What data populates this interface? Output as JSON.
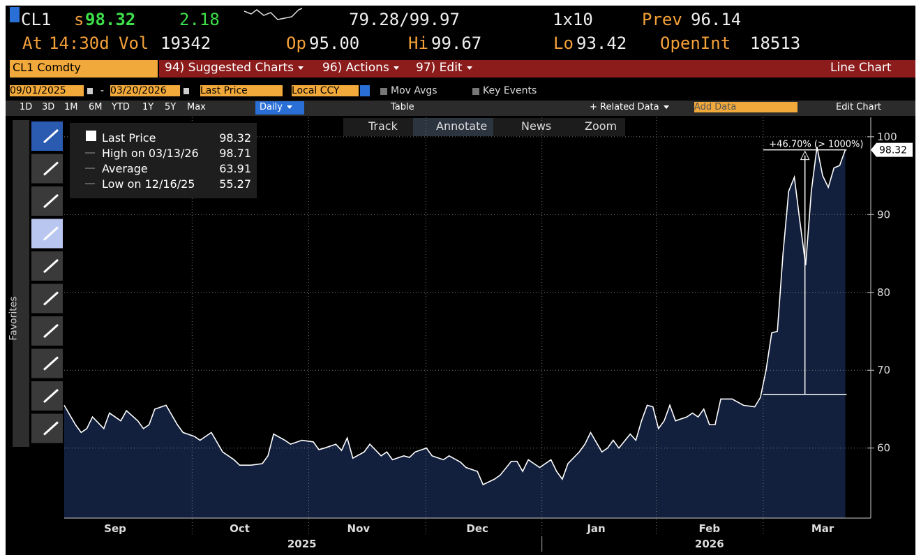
{
  "header": {
    "ticker": "CL1",
    "price_flag": "s",
    "price": "98.32",
    "change": "2.18",
    "range": "79.28/99.97",
    "ratio": "1x10",
    "prev_label": "Prev",
    "prev": "96.14",
    "time_label": "At",
    "time": "14:30d",
    "vol_label": "Vol",
    "vol": "19342",
    "open_label": "Op",
    "open": "95.00",
    "high_label": "Hi",
    "high": "99.67",
    "low_label": "Lo",
    "low": "93.42",
    "oi_label": "OpenInt",
    "oi": "18513"
  },
  "menu": {
    "security": "CL1 Comdty",
    "items": [
      "94) Suggested Charts",
      "96) Actions",
      "97) Edit"
    ],
    "title": "Line Chart"
  },
  "controls": {
    "start": "09/01/2025",
    "dash": "-",
    "end": "03/20/2026",
    "field": "Last Price",
    "currency": "Local CCY",
    "options": [
      "Mov Avgs",
      "Key Events"
    ],
    "periods": [
      "1D",
      "3D",
      "1M",
      "6M",
      "YTD",
      "1Y",
      "5Y",
      "Max"
    ],
    "frequency": "Daily",
    "table": "Table",
    "related": "+ Related Data",
    "add_data": "Add Data",
    "edit": "Edit Chart"
  },
  "toolbar": [
    "Track",
    "Annotate",
    "News",
    "Zoom"
  ],
  "sidebar_label": "Favorites",
  "legend": {
    "rows": [
      {
        "label": "High on 03/13/26",
        "value": "98.71"
      },
      {
        "label": "Average",
        "value": "63.91"
      },
      {
        "label": "Low on 12/16/25",
        "value": "55.27"
      }
    ]
  },
  "chart_data": {
    "type": "line",
    "series": [
      {
        "name": "Last Price",
        "color": "#ffffff",
        "x": [
          0,
          2,
          3,
          4,
          5,
          7,
          8,
          10,
          11,
          13,
          14,
          15,
          16,
          18,
          20,
          21,
          23,
          24,
          26,
          28,
          29,
          30,
          31,
          33,
          35,
          36,
          37,
          39,
          40,
          42,
          44,
          45,
          46,
          48,
          49,
          50,
          51,
          53,
          54,
          56,
          57,
          58,
          60,
          61,
          62,
          64,
          65,
          67,
          68,
          70,
          71,
          73,
          74,
          76,
          77,
          79,
          80,
          81,
          82,
          83,
          84,
          86,
          87,
          88,
          89,
          91,
          92,
          93,
          95,
          96,
          97,
          98,
          100,
          101,
          102,
          103,
          104,
          105,
          106,
          107,
          108,
          110,
          111,
          112,
          113,
          114,
          115,
          116,
          118,
          120,
          122,
          123,
          124,
          125,
          126,
          127,
          128,
          129,
          130,
          131,
          132,
          133,
          134,
          135,
          136,
          137,
          138
        ],
        "values": [
          65.5,
          63,
          62,
          62.5,
          64,
          62.5,
          64.5,
          63.5,
          64.8,
          63.5,
          62.5,
          63,
          65,
          65.5,
          63,
          62,
          61.5,
          61,
          62,
          59.5,
          59,
          58.5,
          57.8,
          57.8,
          58,
          59,
          61.8,
          61,
          60.5,
          61,
          60.8,
          59.8,
          60,
          60.5,
          59.7,
          61.3,
          58.7,
          59.5,
          60.5,
          59,
          59.5,
          58.5,
          59,
          58.8,
          59.5,
          60,
          59,
          58.5,
          59,
          58.2,
          57.5,
          57,
          55.3,
          56,
          56.5,
          58.3,
          58.3,
          57,
          58.5,
          58,
          57.5,
          58.5,
          57,
          56,
          58,
          59.5,
          60.5,
          62,
          59.5,
          60,
          61,
          60,
          61.8,
          61,
          63.5,
          65.5,
          65.3,
          62.5,
          63.5,
          65.5,
          63.5,
          64,
          64.5,
          64,
          65,
          63,
          63,
          66.3,
          66.3,
          65.5,
          65.3,
          66.5,
          70,
          74.8,
          75,
          85,
          93,
          94.8,
          89,
          83.5,
          93,
          98.7,
          95,
          93.5,
          96,
          96.3,
          98.32
        ]
      }
    ],
    "xlim": [
      0,
      142.5
    ],
    "xticks": [
      {
        "value": 9,
        "label": "Sep"
      },
      {
        "value": 31,
        "label": "Oct"
      },
      {
        "value": 52,
        "label": "Nov"
      },
      {
        "value": 73,
        "label": "Dec"
      },
      {
        "value": 94,
        "label": "Jan"
      },
      {
        "value": 114,
        "label": "Feb"
      },
      {
        "value": 134,
        "label": "Mar"
      }
    ],
    "x_gridlines": [
      22.6,
      43.2,
      63.9,
      84.4,
      104.6,
      123.5
    ],
    "year_ticks": [
      {
        "value": 42,
        "label": "2025"
      },
      {
        "value": 114,
        "label": "2026"
      }
    ],
    "ylim": [
      51,
      102.5
    ],
    "yticks": [
      60,
      70,
      80,
      90,
      100
    ],
    "grid": true,
    "annotation": {
      "label": "+46.70% (> 1000%)",
      "from": 66.9,
      "to": 98.32
    }
  }
}
